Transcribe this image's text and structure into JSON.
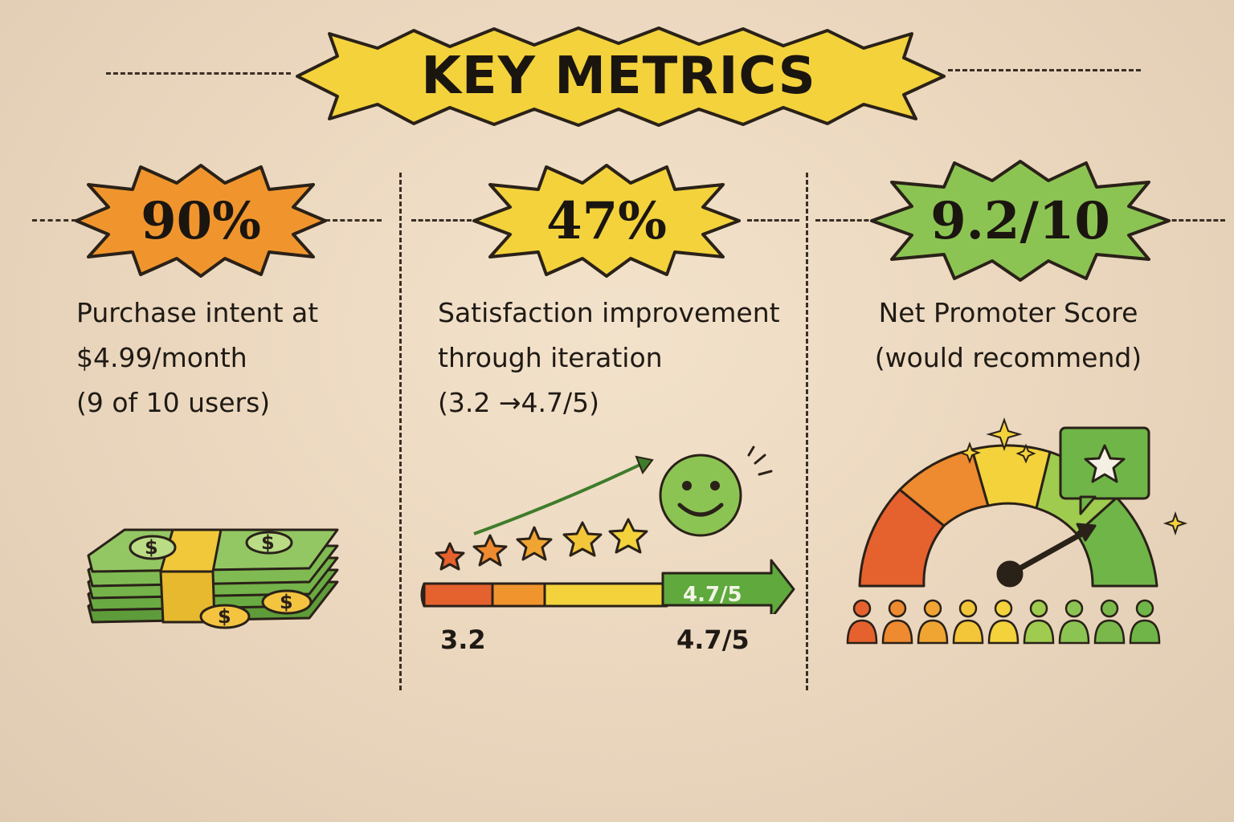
{
  "title": "KEY METRICS",
  "metrics": [
    {
      "value": "90%",
      "lines": [
        "Purchase intent at",
        "$4.99/month",
        "(9 of 10 users)"
      ],
      "color": "#f0952e",
      "icon": "money-stack-icon"
    },
    {
      "value": "47%",
      "lines": [
        "Satisfaction improvement",
        "through iteration",
        "(3.2 →4.7/5)"
      ],
      "color": "#f3d23c",
      "icon": "rating-progress-icon",
      "bar_start": "3.2",
      "bar_end": "4.7/5",
      "bar_badge": "4.7/5"
    },
    {
      "value": "9.2/10",
      "lines": [
        "Net Promoter Score",
        "(would recommend)"
      ],
      "color": "#8cc453",
      "icon": "gauge-icon"
    }
  ],
  "colors": {
    "orange": "#f0952e",
    "yellow": "#f3d23c",
    "green": "#8cc453",
    "red": "#e5612e",
    "dark_green": "#4f9a37"
  }
}
